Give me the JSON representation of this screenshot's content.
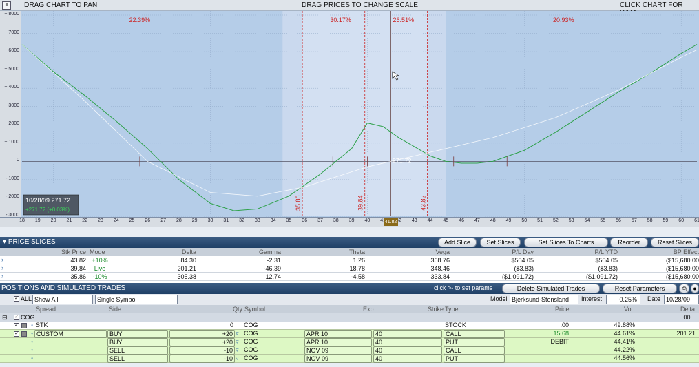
{
  "topbar": {
    "left_label": "DRAG CHART TO PAN",
    "center_label": "DRAG PRICES TO CHANGE SCALE",
    "right_label": "CLICK CHART FOR DATA"
  },
  "chart_data": {
    "type": "line",
    "x_range": [
      18,
      61
    ],
    "y_range": [
      -3000,
      8000
    ],
    "x_ticks": [
      "18",
      "19",
      "20",
      "21",
      "22",
      "23",
      "24",
      "25",
      "26",
      "27",
      "28",
      "29",
      "30",
      "31",
      "32",
      "33",
      "34",
      "35",
      "36",
      "37",
      "38",
      "39",
      "40",
      "41",
      "42",
      "43",
      "44",
      "45",
      "46",
      "47",
      "48",
      "49",
      "50",
      "51",
      "52",
      "53",
      "54",
      "55",
      "56",
      "57",
      "58",
      "59",
      "60",
      "61"
    ],
    "y_ticks": [
      "+ 8000",
      "+ 7000",
      "+ 6000",
      "+ 5000",
      "+ 4000",
      "+ 3000",
      "+ 2000",
      "+ 1000",
      "0",
      "- 1000",
      "- 2000",
      "- 3000"
    ],
    "zone_percents": [
      "22.39%",
      "30.17%",
      "26.51%",
      "20.93%"
    ],
    "slice_lines": [
      "35.86",
      "39.84",
      "43.82"
    ],
    "current_price_label": "41.82",
    "center_value_label": "271.72",
    "tooltip": {
      "line1": "10/28/09  271.72",
      "line2": "+271.72 (+0.03%)"
    },
    "series": [
      {
        "color": "#2ea14a",
        "x": [
          18,
          20,
          22,
          24,
          26,
          28,
          30,
          31.5,
          33,
          35,
          37,
          39,
          40,
          41,
          42,
          43,
          44,
          45,
          46,
          47,
          48,
          50,
          52,
          54,
          56,
          58,
          60,
          61
        ],
        "y": [
          6400,
          4900,
          3600,
          2200,
          700,
          -1000,
          -2300,
          -2700,
          -2600,
          -1900,
          -700,
          700,
          2100,
          1900,
          1300,
          800,
          300,
          0,
          -100,
          -100,
          0,
          600,
          1600,
          2700,
          3800,
          4800,
          5900,
          6400
        ]
      },
      {
        "color": "#ffffff",
        "x": [
          18,
          22,
          26,
          30,
          33,
          36,
          40,
          44,
          48,
          52,
          56,
          60,
          61
        ],
        "y": [
          6400,
          3300,
          0,
          -1700,
          -1900,
          -1400,
          -300,
          500,
          1300,
          2400,
          3900,
          5700,
          6100
        ]
      }
    ]
  },
  "price_slices": {
    "title": "PRICE SLICES",
    "buttons": [
      "Add Slice",
      "Set Slices",
      "Set Slices To Charts",
      "Reorder",
      "Reset Slices"
    ],
    "columns": [
      "Stk Price",
      "Mode",
      "Delta",
      "Gamma",
      "Theta",
      "Vega",
      "P/L Day",
      "P/L YTD",
      "BP Effect"
    ],
    "rows": [
      [
        "43.82",
        "+10%",
        "84.30",
        "-2.31",
        "1.26",
        "368.76",
        "$504.05",
        "$504.05",
        "($15,680.00"
      ],
      [
        "39.84",
        "Live",
        "201.21",
        "-46.39",
        "18.78",
        "348.46",
        "($3.83)",
        "($3.83)",
        "($15,680.00"
      ],
      [
        "35.86",
        "-10%",
        "305.38",
        "12.74",
        "-4.58",
        "333.84",
        "($1,091.72)",
        "($1,091.72)",
        "($15,680.00"
      ]
    ]
  },
  "positions": {
    "title": "POSITIONS AND SIMULATED TRADES",
    "hint": "click  >-  to set params",
    "buttons": {
      "delete": "Delete Simulated Trades",
      "reset": "Reset Parameters"
    },
    "toolbar": {
      "all_label": "ALL",
      "show": "Show All",
      "symbol_mode": "Single Symbol",
      "model_label": "Model",
      "model": "Bjerksund-Stensland",
      "interest_label": "Interest",
      "interest": "0.25%",
      "date_label": "Date",
      "date": "10/28/09"
    },
    "columns": [
      "Spread",
      "Side",
      "Qty",
      "Symbol",
      "Exp",
      "Strike",
      "Type",
      "Price",
      "Vol",
      "Delta"
    ],
    "group": "COG",
    "group_value": ".00",
    "rows": [
      {
        "spread": "STK",
        "side": "",
        "qty": "0",
        "symbol": "COG",
        "exp": "",
        "strike": "",
        "type": "STOCK",
        "price": ".00",
        "vol": "49.88%",
        "delta": "",
        "style": "white"
      },
      {
        "spread": "CUSTOM",
        "side": "BUY",
        "qty": "+20",
        "symbol": "COG",
        "exp": "APR 10",
        "strike": "40",
        "type": "CALL",
        "price": "15.68",
        "vol": "44.61%",
        "delta": "201.21",
        "style": "green"
      },
      {
        "spread": "",
        "side": "BUY",
        "qty": "+20",
        "symbol": "COG",
        "exp": "APR 10",
        "strike": "40",
        "type": "PUT",
        "price": "DEBIT",
        "vol": "44.41%",
        "delta": "",
        "style": "green"
      },
      {
        "spread": "",
        "side": "SELL",
        "qty": "-10",
        "symbol": "COG",
        "exp": "NOV 09",
        "strike": "40",
        "type": "CALL",
        "price": "",
        "vol": "44.22%",
        "delta": "",
        "style": "green"
      },
      {
        "spread": "",
        "side": "SELL",
        "qty": "-10",
        "symbol": "COG",
        "exp": "NOV 09",
        "strike": "40",
        "type": "PUT",
        "price": "",
        "vol": "44.56%",
        "delta": "",
        "style": "green"
      }
    ]
  }
}
